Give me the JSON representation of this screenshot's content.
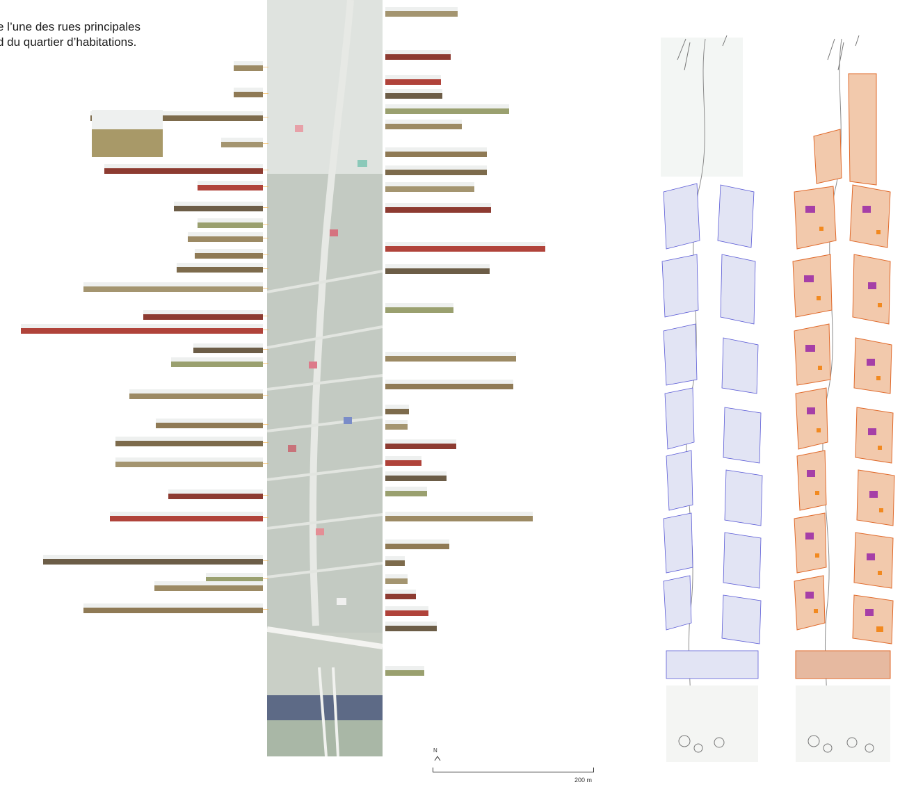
{
  "caption": {
    "line1": "e l’une des rues principales",
    "line2": "d du quartier d’habitations."
  },
  "scale_bar": {
    "label": "200 m"
  },
  "north_arrow": {
    "label": "N"
  },
  "palette": {
    "leader_line": "#f2b24d",
    "plan_outline": "#e0692a",
    "plan_fill": "#f2c9ac",
    "building_magenta": "#a63fa7",
    "building_orange": "#f2891f",
    "blueprint": "#5a5ad6",
    "aerial_ground": "#c9cfc6",
    "river": "#5d6a86"
  }
}
